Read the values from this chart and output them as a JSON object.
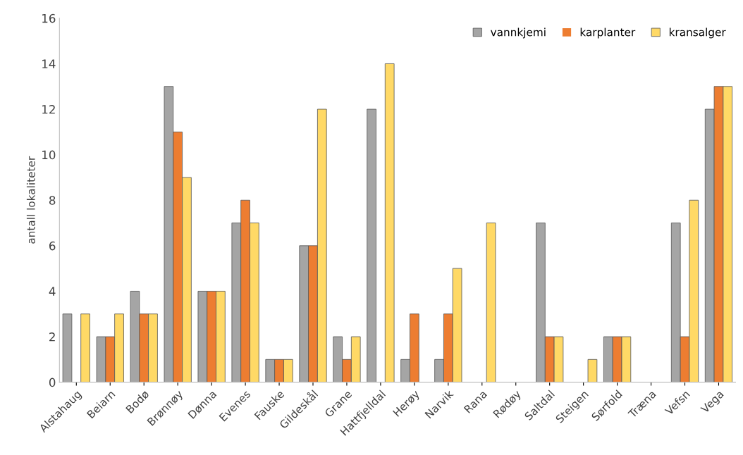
{
  "chart_data": {
    "type": "bar",
    "ylabel": "antall lokaliteter",
    "categories": [
      "Alstahaug",
      "Beiarn",
      "Bodø",
      "Brønnøy",
      "Dønna",
      "Evenes",
      "Fauske",
      "Gildeskål",
      "Grane",
      "Hattfjelldal",
      "Herøy",
      "Narvik",
      "Rana",
      "Rødøy",
      "Saltdal",
      "Steigen",
      "Sørfold",
      "Træna",
      "Vefsn",
      "Vega"
    ],
    "series": [
      {
        "name": "vannkjemi",
        "color": "#a5a5a5",
        "values": [
          3,
          2,
          4,
          13,
          4,
          7,
          1,
          6,
          2,
          12,
          1,
          1,
          0,
          0,
          7,
          0,
          2,
          0,
          7,
          12
        ]
      },
      {
        "name": "karplanter",
        "color": "#ed7d31",
        "values": [
          0,
          2,
          3,
          11,
          4,
          8,
          1,
          6,
          1,
          0,
          3,
          3,
          0,
          0,
          2,
          0,
          2,
          0,
          2,
          13
        ]
      },
      {
        "name": "kransalger",
        "color": "#ffd966",
        "values": [
          3,
          3,
          3,
          9,
          4,
          7,
          1,
          12,
          2,
          14,
          0,
          5,
          7,
          0,
          2,
          1,
          2,
          0,
          8,
          13
        ]
      }
    ],
    "ylim": [
      0,
      16
    ],
    "yticks": [
      0,
      2,
      4,
      6,
      8,
      10,
      12,
      14,
      16
    ],
    "grid": false,
    "legend": "top right"
  }
}
